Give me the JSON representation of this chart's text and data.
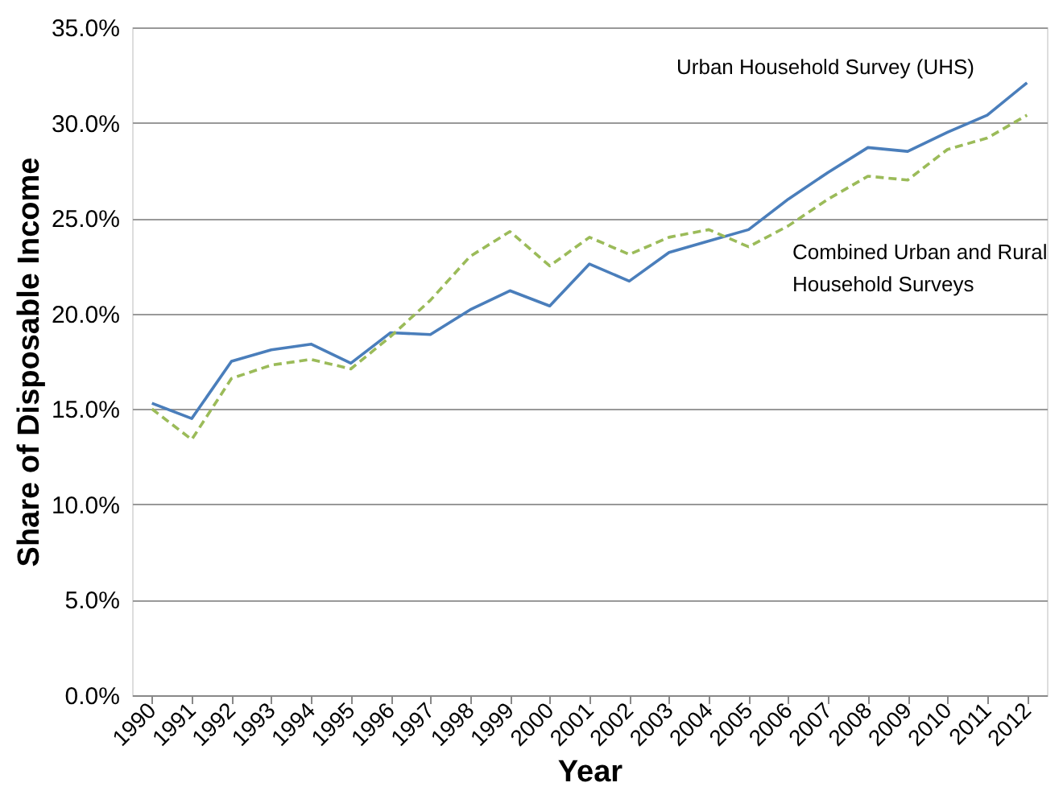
{
  "chart_data": {
    "type": "line",
    "xlabel": "Year",
    "ylabel": "Share of Disposable Income",
    "categories": [
      "1990",
      "1991",
      "1992",
      "1993",
      "1994",
      "1995",
      "1996",
      "1997",
      "1998",
      "1999",
      "2000",
      "2001",
      "2002",
      "2003",
      "2004",
      "2005",
      "2006",
      "2007",
      "2008",
      "2009",
      "2010",
      "2011",
      "2012"
    ],
    "series": [
      {
        "color": "#4a7ebb",
        "line_style": "solid",
        "values": [
          15.3,
          14.5,
          17.5,
          18.1,
          18.4,
          17.4,
          19.0,
          18.9,
          20.2,
          21.2,
          20.4,
          22.6,
          21.7,
          23.2,
          23.8,
          24.4,
          26.0,
          27.4,
          28.7,
          28.5,
          29.5,
          30.4,
          32.1
        ]
      },
      {
        "color": "#9bbb59",
        "line_style": "dashed",
        "values": [
          15.0,
          13.4,
          16.6,
          17.3,
          17.6,
          17.1,
          18.8,
          20.7,
          23.0,
          24.3,
          22.5,
          24.0,
          23.1,
          24.0,
          24.4,
          23.5,
          24.6,
          26.0,
          27.2,
          27.0,
          28.6,
          29.2,
          30.4
        ]
      }
    ],
    "ylim": [
      0,
      35
    ],
    "yticks": [
      {
        "value": 0,
        "label": "0.0%"
      },
      {
        "value": 5,
        "label": "5.0%"
      },
      {
        "value": 10,
        "label": "10.0%"
      },
      {
        "value": 15,
        "label": "15.0%"
      },
      {
        "value": 20,
        "label": "20.0%"
      },
      {
        "value": 25,
        "label": "25.0%"
      },
      {
        "value": 30,
        "label": "30.0%"
      },
      {
        "value": 35,
        "label": "35.0%"
      }
    ],
    "grid": "y",
    "marker": "none",
    "annotations": [
      "Urban Household Survey (UHS)",
      "Combined Urban and Rural\nHousehold Surveys"
    ]
  }
}
